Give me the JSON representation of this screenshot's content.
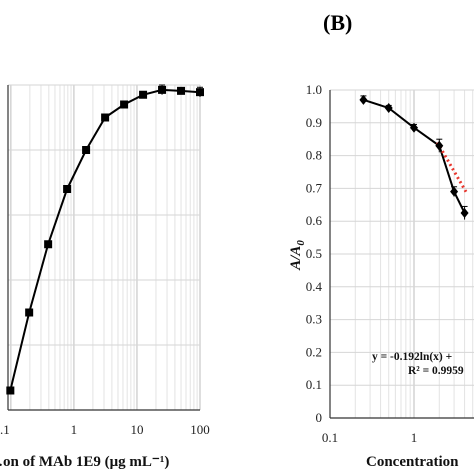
{
  "chart_data": [
    {
      "type": "line",
      "panel_label": "",
      "xlabel": "…on of MAb 1E9 (μg mL⁻¹)",
      "ylabel": "",
      "x_scale": "log",
      "xlim": [
        0.09,
        100
      ],
      "ylim": [
        0,
        1.0
      ],
      "x_ticks": [
        {
          "value": 0.1,
          "label": ".1"
        },
        {
          "value": 1,
          "label": "1"
        },
        {
          "value": 10,
          "label": "10"
        },
        {
          "value": 100,
          "label": "100"
        }
      ],
      "grid": true,
      "series": [
        {
          "marker": "square",
          "color": "#000000",
          "x": [
            0.098,
            0.195,
            0.39,
            0.78,
            1.56,
            3.125,
            6.25,
            12.5,
            25,
            50,
            100
          ],
          "y": [
            0.06,
            0.3,
            0.51,
            0.68,
            0.8,
            0.9,
            0.94,
            0.97,
            0.985,
            0.982,
            0.978
          ],
          "err": [
            0.005,
            0.005,
            0.006,
            0.006,
            0.006,
            0.008,
            0.008,
            0.01,
            0.015,
            0.01,
            0.015
          ]
        }
      ]
    },
    {
      "type": "line",
      "panel_label": "(B)",
      "xlabel": "Concentration",
      "ylabel_main": "A/A",
      "ylabel_sub": "0",
      "x_scale": "log",
      "xlim": [
        0.1,
        10
      ],
      "ylim": [
        0,
        1.0
      ],
      "x_ticks": [
        {
          "value": 0.1,
          "label": "0.1"
        },
        {
          "value": 1,
          "label": "1"
        }
      ],
      "y_ticks": [
        "0",
        "0.1",
        "0.2",
        "0.3",
        "0.4",
        "0.5",
        "0.6",
        "0.7",
        "0.8",
        "0.9",
        "1.0"
      ],
      "grid": true,
      "series": [
        {
          "marker": "diamond",
          "color": "#000000",
          "x": [
            0.25,
            0.5,
            1,
            2,
            3,
            4
          ],
          "y": [
            0.97,
            0.945,
            0.885,
            0.83,
            0.69,
            0.625
          ],
          "err": [
            0.012,
            0.008,
            0.01,
            0.02,
            0.015,
            0.02
          ]
        }
      ],
      "fit": {
        "color": "#e8382f",
        "style": "dotted",
        "x_range": [
          1.9,
          4.2
        ],
        "equation_line1": "y = -0.192ln(x) +",
        "equation_line2": "R² = 0.9959"
      }
    }
  ]
}
